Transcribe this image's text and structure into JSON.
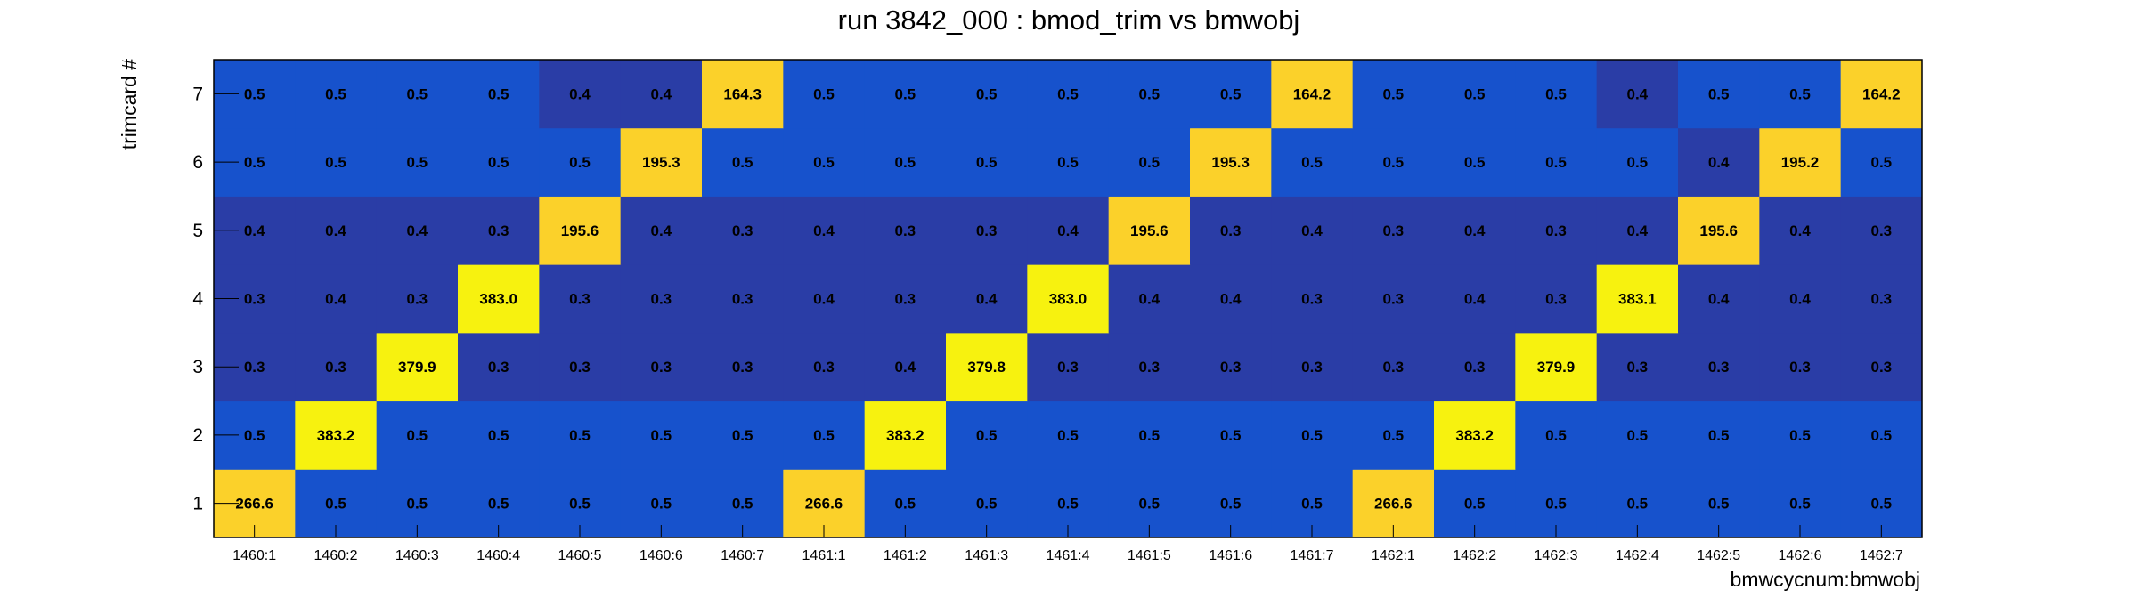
{
  "chart_data": {
    "type": "heatmap",
    "title": "run 3842_000 : bmod_trim vs bmwobj",
    "xlabel": "bmwcycnum:bmwobj",
    "ylabel": "trimcard #",
    "x_categories": [
      "1460:1",
      "1460:2",
      "1460:3",
      "1460:4",
      "1460:5",
      "1460:6",
      "1460:7",
      "1461:1",
      "1461:2",
      "1461:3",
      "1461:4",
      "1461:5",
      "1461:6",
      "1461:7",
      "1462:1",
      "1462:2",
      "1462:3",
      "1462:4",
      "1462:5",
      "1462:6",
      "1462:7"
    ],
    "y_categories": [
      "1",
      "2",
      "3",
      "4",
      "5",
      "6",
      "7"
    ],
    "rows": [
      {
        "y": "1",
        "values": [
          266.6,
          0.5,
          0.5,
          0.5,
          0.5,
          0.5,
          0.5,
          266.6,
          0.5,
          0.5,
          0.5,
          0.5,
          0.5,
          0.5,
          266.6,
          0.5,
          0.5,
          0.5,
          0.5,
          0.5,
          0.5
        ],
        "labels": [
          "266.6",
          "0.5",
          "0.5",
          "0.5",
          "0.5",
          "0.5",
          "0.5",
          "266.6",
          "0.5",
          "0.5",
          "0.5",
          "0.5",
          "0.5",
          "0.5",
          "266.6",
          "0.5",
          "0.5",
          "0.5",
          "0.5",
          "0.5",
          "0.5"
        ]
      },
      {
        "y": "2",
        "values": [
          0.5,
          383.2,
          0.5,
          0.5,
          0.5,
          0.5,
          0.5,
          0.5,
          383.2,
          0.5,
          0.5,
          0.5,
          0.5,
          0.5,
          0.5,
          383.2,
          0.5,
          0.5,
          0.5,
          0.5,
          0.5
        ],
        "labels": [
          "0.5",
          "383.2",
          "0.5",
          "0.5",
          "0.5",
          "0.5",
          "0.5",
          "0.5",
          "383.2",
          "0.5",
          "0.5",
          "0.5",
          "0.5",
          "0.5",
          "0.5",
          "383.2",
          "0.5",
          "0.5",
          "0.5",
          "0.5",
          "0.5"
        ]
      },
      {
        "y": "3",
        "values": [
          0.3,
          0.3,
          379.9,
          0.3,
          0.3,
          0.3,
          0.3,
          0.3,
          0.4,
          379.8,
          0.3,
          0.3,
          0.3,
          0.3,
          0.3,
          0.3,
          379.9,
          0.3,
          0.3,
          0.3,
          0.3
        ],
        "labels": [
          "0.3",
          "0.3",
          "379.9",
          "0.3",
          "0.3",
          "0.3",
          "0.3",
          "0.3",
          "0.4",
          "379.8",
          "0.3",
          "0.3",
          "0.3",
          "0.3",
          "0.3",
          "0.3",
          "379.9",
          "0.3",
          "0.3",
          "0.3",
          "0.3"
        ]
      },
      {
        "y": "4",
        "values": [
          0.3,
          0.4,
          0.3,
          383.0,
          0.3,
          0.3,
          0.3,
          0.4,
          0.3,
          0.4,
          383.0,
          0.4,
          0.4,
          0.3,
          0.3,
          0.4,
          0.3,
          383.1,
          0.4,
          0.4,
          0.3
        ],
        "labels": [
          "0.3",
          "0.4",
          "0.3",
          "383.0",
          "0.3",
          "0.3",
          "0.3",
          "0.4",
          "0.3",
          "0.4",
          "383.0",
          "0.4",
          "0.4",
          "0.3",
          "0.3",
          "0.4",
          "0.3",
          "383.1",
          "0.4",
          "0.4",
          "0.3"
        ]
      },
      {
        "y": "5",
        "values": [
          0.4,
          0.4,
          0.4,
          0.3,
          195.6,
          0.4,
          0.3,
          0.4,
          0.3,
          0.3,
          0.4,
          195.6,
          0.3,
          0.4,
          0.3,
          0.4,
          0.3,
          0.4,
          195.6,
          0.4,
          0.3
        ],
        "labels": [
          "0.4",
          "0.4",
          "0.4",
          "0.3",
          "195.6",
          "0.4",
          "0.3",
          "0.4",
          "0.3",
          "0.3",
          "0.4",
          "195.6",
          "0.3",
          "0.4",
          "0.3",
          "0.4",
          "0.3",
          "0.4",
          "195.6",
          "0.4",
          "0.3"
        ]
      },
      {
        "y": "6",
        "values": [
          0.5,
          0.5,
          0.5,
          0.5,
          0.5,
          195.3,
          0.5,
          0.5,
          0.5,
          0.5,
          0.5,
          0.5,
          195.3,
          0.5,
          0.5,
          0.5,
          0.5,
          0.5,
          0.4,
          195.2,
          0.5
        ],
        "labels": [
          "0.5",
          "0.5",
          "0.5",
          "0.5",
          "0.5",
          "195.3",
          "0.5",
          "0.5",
          "0.5",
          "0.5",
          "0.5",
          "0.5",
          "195.3",
          "0.5",
          "0.5",
          "0.5",
          "0.5",
          "0.5",
          "0.4",
          "195.2",
          "0.5"
        ]
      },
      {
        "y": "7",
        "values": [
          0.5,
          0.5,
          0.5,
          0.5,
          0.4,
          0.4,
          164.3,
          0.5,
          0.5,
          0.5,
          0.5,
          0.5,
          0.5,
          164.2,
          0.5,
          0.5,
          0.5,
          0.4,
          0.5,
          0.5,
          164.2
        ],
        "labels": [
          "0.5",
          "0.5",
          "0.5",
          "0.5",
          "0.4",
          "0.4",
          "164.3",
          "0.5",
          "0.5",
          "0.5",
          "0.5",
          "0.5",
          "0.5",
          "164.2",
          "0.5",
          "0.5",
          "0.5",
          "0.4",
          "0.5",
          "0.5",
          "164.2"
        ]
      }
    ],
    "colors": {
      "low_blue": "#1752cc",
      "low_dark": "#2a3da6",
      "peak_yellow": "#f7f20f",
      "peak_gold": "#fbd12a",
      "mid_gold": "#fbcf2c"
    },
    "grid": false,
    "legend": "none"
  }
}
